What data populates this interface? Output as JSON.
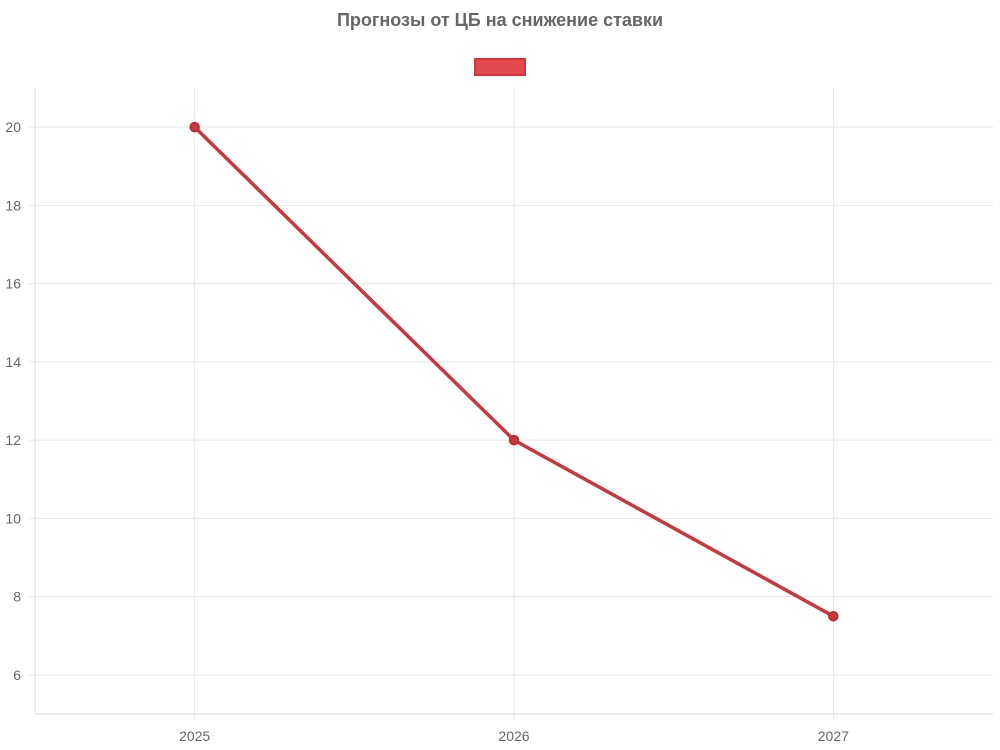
{
  "chart_data": {
    "type": "line",
    "title": "Прогнозы от ЦБ на снижение ставки",
    "xlabel": "",
    "ylabel": "",
    "categories": [
      "2025",
      "2026",
      "2027"
    ],
    "series": [
      {
        "values": [
          20,
          12,
          7.5
        ],
        "color": "#c9373c",
        "legend_color": "#e04a4e"
      }
    ],
    "ylim": [
      5,
      21
    ],
    "yticks": [
      6,
      8,
      10,
      12,
      14,
      16,
      18,
      20
    ],
    "grid": true,
    "legend_position": "top"
  }
}
